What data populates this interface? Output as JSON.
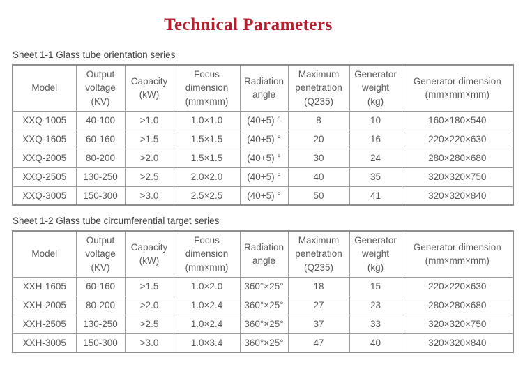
{
  "page": {
    "title": "Technical Parameters"
  },
  "colors": {
    "title_red": "#b51e2d",
    "table_border": "#9b9b9b",
    "table_text": "#595959"
  },
  "tables": [
    {
      "caption": "Sheet 1-1 Glass tube orientation series",
      "headers": [
        "Model",
        "Output\nvoltage\n(KV)",
        "Capacity\n(kW)",
        "Focus\ndimension\n(mm×mm)",
        "Radiation\nangle",
        "Maximum\npenetration\n(Q235)",
        "Generator\nweight\n(kg)",
        "Generator dimension\n(mm×mm×mm)"
      ],
      "rows": [
        [
          "XXQ-1005",
          "40-100",
          ">1.0",
          "1.0×1.0",
          "(40+5) °",
          "8",
          "10",
          "160×180×540"
        ],
        [
          "XXQ-1605",
          "60-160",
          ">1.5",
          "1.5×1.5",
          "(40+5) °",
          "20",
          "16",
          "220×220×630"
        ],
        [
          "XXQ-2005",
          "80-200",
          ">2.0",
          "1.5×1.5",
          "(40+5) °",
          "30",
          "24",
          "280×280×680"
        ],
        [
          "XXQ-2505",
          "130-250",
          ">2.5",
          "2.0×2.0",
          "(40+5) °",
          "40",
          "35",
          "320×320×750"
        ],
        [
          "XXQ-3005",
          "150-300",
          ">3.0",
          "2.5×2.5",
          "(40+5) °",
          "50",
          "41",
          "320×320×840"
        ]
      ]
    },
    {
      "caption": "Sheet 1-2 Glass tube circumferential target series",
      "headers": [
        "Model",
        "Output\nvoltage\n(KV)",
        "Capacity\n(kW)",
        "Focus\ndimension\n(mm×mm)",
        "Radiation\nangle",
        "Maximum\npenetration\n(Q235)",
        "Generator\nweight\n(kg)",
        "Generator dimension\n(mm×mm×mm)"
      ],
      "rows": [
        [
          "XXH-1605",
          "60-160",
          ">1.5",
          "1.0×2.0",
          "360°×25°",
          "18",
          "15",
          "220×220×630"
        ],
        [
          "XXH-2005",
          "80-200",
          ">2.0",
          "1.0×2.4",
          "360°×25°",
          "27",
          "23",
          "280×280×680"
        ],
        [
          "XXH-2505",
          "130-250",
          ">2.5",
          "1.0×2.4",
          "360°×25°",
          "37",
          "33",
          "320×320×750"
        ],
        [
          "XXH-3005",
          "150-300",
          ">3.0",
          "1.0×3.4",
          "360°×25°",
          "47",
          "40",
          "320×320×840"
        ]
      ]
    }
  ]
}
